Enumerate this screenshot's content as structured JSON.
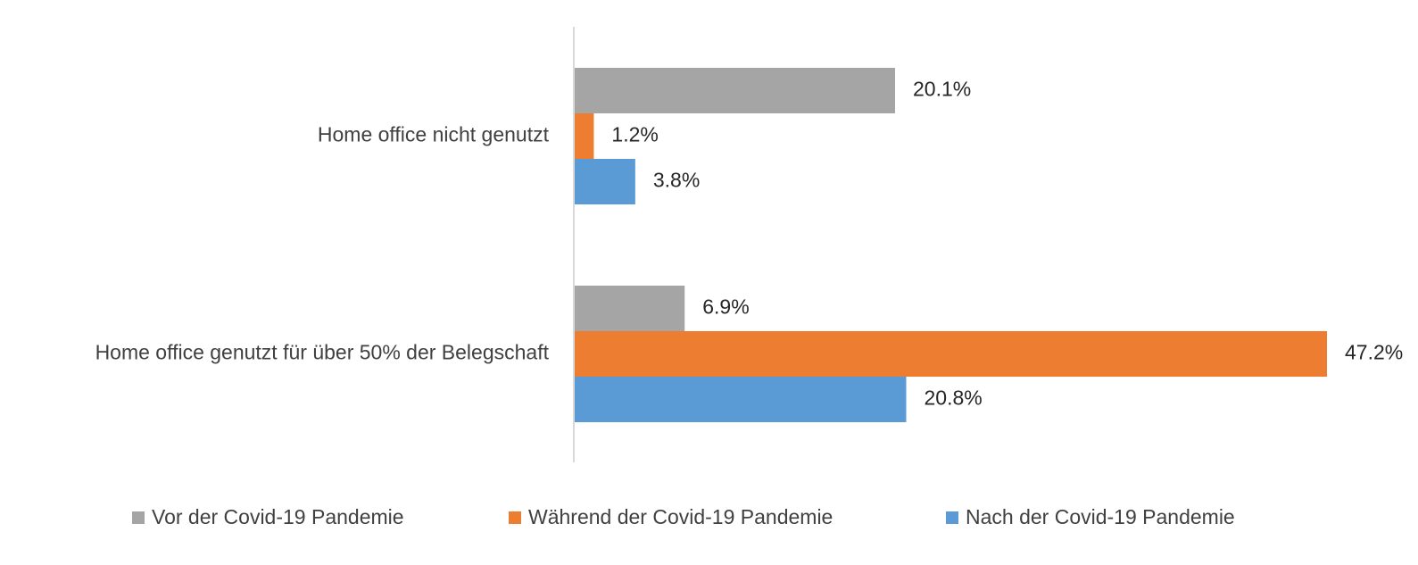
{
  "chart_data": {
    "type": "bar",
    "orientation": "horizontal",
    "categories": [
      "Home office nicht genutzt",
      "Home office genutzt für über 50% der Belegschaft"
    ],
    "series": [
      {
        "name": "Vor der Covid-19 Pandemie",
        "values": [
          20.1,
          6.9
        ],
        "labels": [
          "20.1%",
          "6.9%"
        ],
        "color": "#a5a5a5"
      },
      {
        "name": "Während der Covid-19 Pandemie",
        "values": [
          1.2,
          47.2
        ],
        "labels": [
          "1.2%",
          "47.2%"
        ],
        "color": "#ed7d31"
      },
      {
        "name": "Nach der Covid-19 Pandemie",
        "values": [
          3.8,
          20.8
        ],
        "labels": [
          "3.8%",
          "20.8%"
        ],
        "color": "#5b9bd5"
      }
    ],
    "xlim": [
      0,
      47.2
    ],
    "grid": false,
    "legend_position": "bottom",
    "title": "",
    "xlabel": "",
    "ylabel": ""
  }
}
